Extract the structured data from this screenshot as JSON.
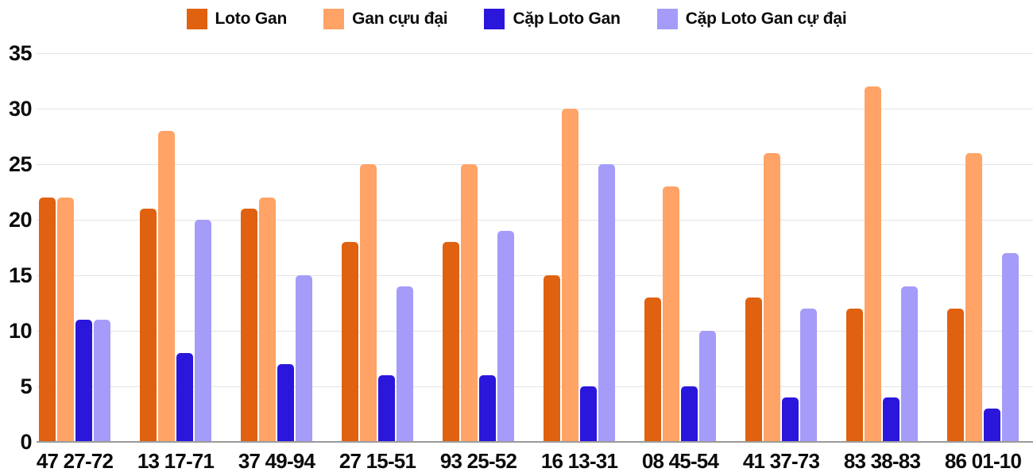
{
  "chart_data": {
    "type": "bar",
    "title": "",
    "categories": [
      "47 27-72",
      "13 17-71",
      "37 49-94",
      "27 15-51",
      "93 25-52",
      "16 13-31",
      "08 45-54",
      "41 37-73",
      "83 38-83",
      "86 01-10"
    ],
    "series": [
      {
        "name": "Loto Gan",
        "color": "#E0610F",
        "values": [
          22,
          21,
          21,
          18,
          18,
          15,
          13,
          13,
          12,
          12
        ]
      },
      {
        "name": "Gan cựu đại",
        "color": "#FFA366",
        "values": [
          22,
          28,
          22,
          25,
          25,
          30,
          23,
          26,
          32,
          26
        ]
      },
      {
        "name": "Cặp Loto Gan",
        "color": "#2B16DC",
        "values": [
          11,
          8,
          7,
          6,
          6,
          5,
          5,
          4,
          4,
          3
        ]
      },
      {
        "name": "Cặp Loto Gan cự đại",
        "color": "#A49CF8",
        "values": [
          11,
          20,
          15,
          14,
          19,
          25,
          10,
          12,
          14,
          17
        ]
      }
    ],
    "ylim": [
      0,
      35
    ],
    "yticks": [
      0,
      5,
      10,
      15,
      20,
      25,
      30,
      35
    ],
    "grid": true,
    "legend_position": "top",
    "colors": {
      "gridline": "#e4e4e4",
      "baseline": "#9a9a9a",
      "label": "#0b0b0b"
    }
  }
}
